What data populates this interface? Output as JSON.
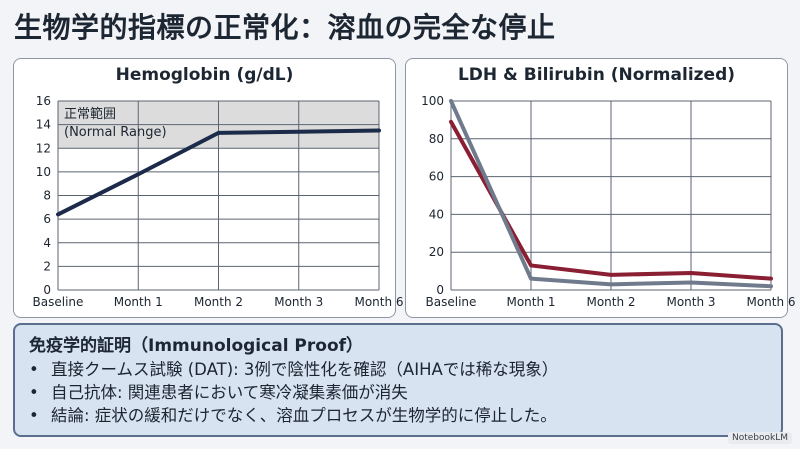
{
  "title": "生物学的指標の正常化：溶血の完全な停止",
  "colors": {
    "hgb_line": "#1c2b4a",
    "ldh_line": "#8a1f34",
    "bili_line": "#6f7b8c",
    "normal_band": "#dcdcdc"
  },
  "chart_data": [
    {
      "type": "line",
      "title": "Hemoglobin (g/dL)",
      "categories": [
        "Baseline",
        "Month 1",
        "Month 2",
        "Month 3",
        "Month 6"
      ],
      "series": [
        {
          "values": [
            6.4,
            9.8,
            13.3,
            13.4,
            13.5
          ]
        }
      ],
      "ylim": [
        0,
        16
      ],
      "yticks": [
        0,
        2,
        4,
        6,
        8,
        10,
        12,
        14,
        16
      ],
      "band": {
        "range": [
          12,
          16
        ],
        "label_line1": "正常範囲",
        "label_line2": "(Normal Range)"
      },
      "grid": true
    },
    {
      "type": "line",
      "title": "LDH & Bilirubin (Normalized)",
      "categories": [
        "Baseline",
        "Month 1",
        "Month 2",
        "Month 3",
        "Month 6"
      ],
      "series": [
        {
          "values": [
            89,
            13,
            8,
            9,
            6
          ]
        },
        {
          "values": [
            100,
            6,
            3,
            4,
            2
          ]
        }
      ],
      "ylim": [
        0,
        100
      ],
      "yticks": [
        0,
        20,
        40,
        60,
        80,
        100
      ],
      "grid": true
    }
  ],
  "proof": {
    "heading": "免疫学的証明（Immunological Proof）",
    "bullet": "•",
    "items": [
      "直接クームス試験 (DAT): 3例で陰性化を確認（AIHAでは稀な現象）",
      "自己抗体: 関連患者において寒冷凝集素価が消失",
      "結論: 症状の緩和だけでなく、溶血プロセスが生物学的に停止した。"
    ]
  },
  "watermark": "NotebookLM"
}
